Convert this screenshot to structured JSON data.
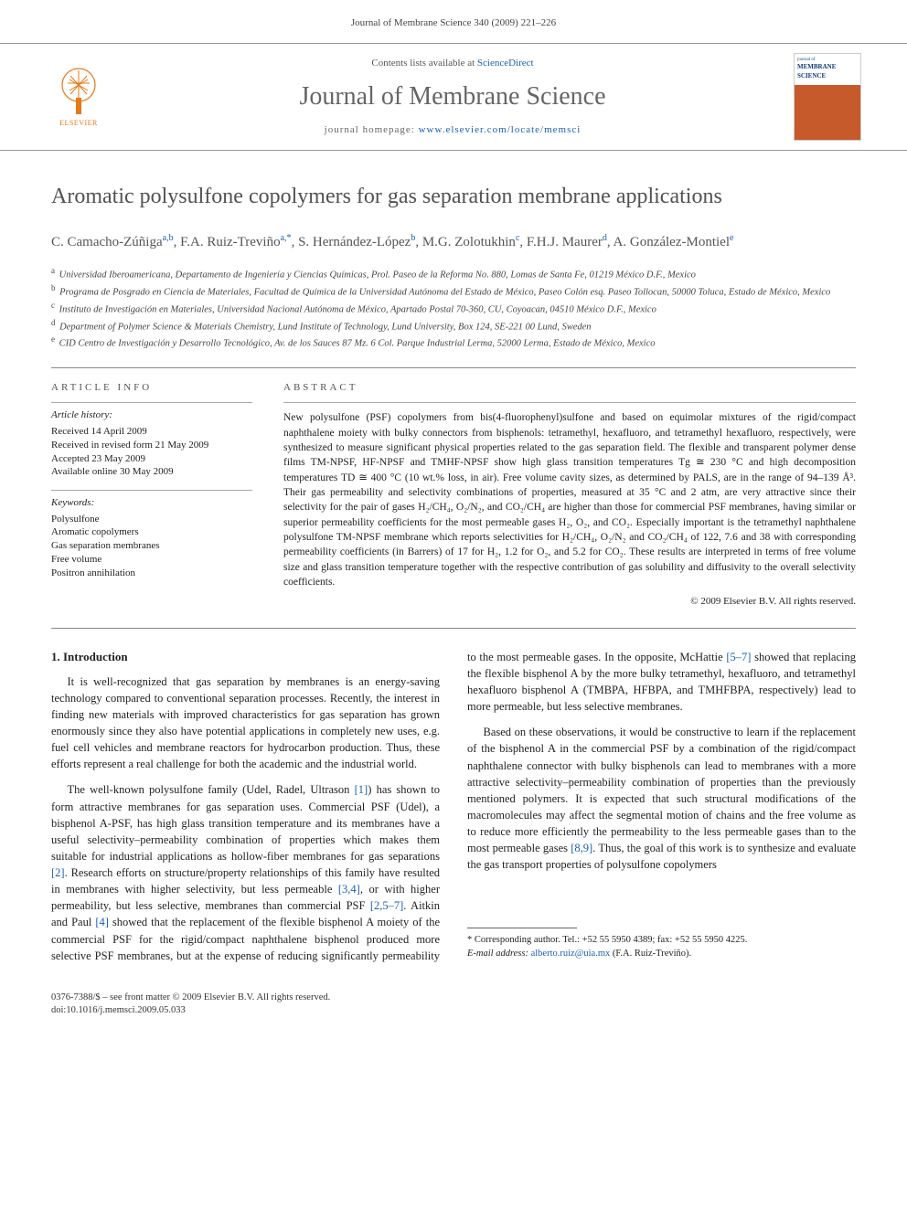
{
  "running_head": "Journal of Membrane Science 340 (2009) 221–226",
  "masthead": {
    "contents_prefix": "Contents lists available at ",
    "contents_link": "ScienceDirect",
    "journal_title": "Journal of Membrane Science",
    "homepage_prefix": "journal homepage: ",
    "homepage_url": "www.elsevier.com/locate/memsci",
    "elsevier_word": "ELSEVIER",
    "cover_small1": "journal of",
    "cover_small2": "MEMBRANE SCIENCE"
  },
  "article": {
    "title": "Aromatic polysulfone copolymers for gas separation membrane applications",
    "authors_html": "C. Camacho-Zúñiga<sup class='aff-link'>a,b</sup>, F.A. Ruiz-Treviño<sup class='aff-link'>a,*</sup>, S. Hernández-López<sup class='aff-link'>b</sup>, M.G. Zolotukhin<sup class='aff-link'>c</sup>, F.H.J. Maurer<sup class='aff-link'>d</sup>, A. González-Montiel<sup class='aff-link'>e</sup>",
    "affiliations": [
      {
        "key": "a",
        "text": "Universidad Iberoamericana, Departamento de Ingeniería y Ciencias Químicas, Prol. Paseo de la Reforma No. 880, Lomas de Santa Fe, 01219 México D.F., Mexico"
      },
      {
        "key": "b",
        "text": "Programa de Posgrado en Ciencia de Materiales, Facultad de Química de la Universidad Autónoma del Estado de México, Paseo Colón esq. Paseo Tollocan, 50000 Toluca, Estado de México, Mexico"
      },
      {
        "key": "c",
        "text": "Instituto de Investigación en Materiales, Universidad Nacional Autónoma de México, Apartado Postal 70-360, CU, Coyoacan, 04510 México D.F., Mexico"
      },
      {
        "key": "d",
        "text": "Department of Polymer Science & Materials Chemistry, Lund Institute of Technology, Lund University, Box 124, SE-221 00 Lund, Sweden"
      },
      {
        "key": "e",
        "text": "CID Centro de Investigación y Desarrollo Tecnológico, Av. de los Sauces 87 Mz. 6 Col. Parque Industrial Lerma, 52000 Lerma, Estado de México, Mexico"
      }
    ],
    "info_heading_left": "ARTICLE INFO",
    "info_heading_right": "ABSTRACT",
    "history_label": "Article history:",
    "history": [
      "Received 14 April 2009",
      "Received in revised form 21 May 2009",
      "Accepted 23 May 2009",
      "Available online 30 May 2009"
    ],
    "keywords_label": "Keywords:",
    "keywords": [
      "Polysulfone",
      "Aromatic copolymers",
      "Gas separation membranes",
      "Free volume",
      "Positron annihilation"
    ],
    "abstract": "New polysulfone (PSF) copolymers from bis(4-fluorophenyl)sulfone and based on equimolar mixtures of the rigid/compact naphthalene moiety with bulky connectors from bisphenols: tetramethyl, hexafluoro, and tetramethyl hexafluoro, respectively, were synthesized to measure significant physical properties related to the gas separation field. The flexible and transparent polymer dense films TM-NPSF, HF-NPSF and TMHF-NPSF show high glass transition temperatures Tg ≅ 230 °C and high decomposition temperatures TD ≅ 400 °C (10 wt.% loss, in air). Free volume cavity sizes, as determined by PALS, are in the range of 94–139 Å³. Their gas permeability and selectivity combinations of properties, measured at 35 °C and 2 atm, are very attractive since their selectivity for the pair of gases H₂/CH₄, O₂/N₂, and CO₂/CH₄ are higher than those for commercial PSF membranes, having similar or superior permeability coefficients for the most permeable gases H₂, O₂, and CO₂. Especially important is the tetramethyl naphthalene polysulfone TM-NPSF membrane which reports selectivities for H₂/CH₄, O₂/N₂ and CO₂/CH₄ of 122, 7.6 and 38 with corresponding permeability coefficients (in Barrers) of 17 for H₂, 1.2 for O₂, and 5.2 for CO₂. These results are interpreted in terms of free volume size and glass transition temperature together with the respective contribution of gas solubility and diffusivity to the overall selectivity coefficients.",
    "copyright": "© 2009 Elsevier B.V. All rights reserved."
  },
  "body": {
    "section1_heading": "1. Introduction",
    "para1": "It is well-recognized that gas separation by membranes is an energy-saving technology compared to conventional separation processes. Recently, the interest in finding new materials with improved characteristics for gas separation has grown enormously since they also have potential applications in completely new uses, e.g. fuel cell vehicles and membrane reactors for hydrocarbon production. Thus, these efforts represent a real challenge for both the academic and the industrial world.",
    "para2_a": "The well-known polysulfone family (Udel, Radel, Ultrason ",
    "para2_ref1": "[1]",
    "para2_b": ") has shown to form attractive membranes for gas separation uses. Commercial PSF (Udel), a bisphenol A-PSF, has high glass transition temperature and its membranes have a useful selectivity–permeability combination of properties which makes them suitable for industrial applications as hollow-fiber membranes for gas separations ",
    "para2_ref2": "[2]",
    "para2_c": ". Research efforts on structure/property relationships of this family have resulted in membranes with higher selectivity, but less permeable ",
    "para2_ref3": "[3,4]",
    "para2_d": ", or with higher permeability, but less selective, membranes than commercial PSF ",
    "para2_ref4": "[2,5–7]",
    "para2_e": ". Aitkin and Paul ",
    "para2_ref5": "[4]",
    "para2_f": " showed that the replacement of the flexible bisphenol A moiety of the commercial PSF for the rigid/compact naphthalene bisphenol produced more selective PSF membranes, but at the expense of reducing significantly permeability to the most permeable gases. In the opposite, McHattie ",
    "para2_ref6": "[5–7]",
    "para2_g": " showed that replacing the flexible bisphenol A by the more bulky tetramethyl, hexafluoro, and tetramethyl hexafluoro bisphenol A (TMBPA, HFBPA, and TMHFBPA, respectively) lead to more permeable, but less selective membranes.",
    "para3_a": "Based on these observations, it would be constructive to learn if the replacement of the bisphenol A in the commercial PSF by a combination of the rigid/compact naphthalene connector with bulky bisphenols can lead to membranes with a more attractive selectivity–permeability combination of properties than the previously mentioned polymers. It is expected that such structural modifications of the macromolecules may affect the segmental motion of chains and the free volume as to reduce more efficiently the permeability to the less permeable gases than to the most permeable gases ",
    "para3_ref1": "[8,9]",
    "para3_b": ". Thus, the goal of this work is to synthesize and evaluate the gas transport properties of polysulfone copolymers"
  },
  "footnotes": {
    "corr": "* Corresponding author. Tel.: +52 55 5950 4389; fax: +52 55 5950 4225.",
    "email_label": "E-mail address: ",
    "email": "alberto.ruiz@uia.mx",
    "email_suffix": " (F.A. Ruiz-Treviño)."
  },
  "bottom": {
    "line1": "0376-7388/$ – see front matter © 2009 Elsevier B.V. All rights reserved.",
    "line2": "doi:10.1016/j.memsci.2009.05.033"
  },
  "colors": {
    "link": "#1a5fb4",
    "elsevier_orange": "#e67817",
    "heading_gray": "#525252"
  }
}
